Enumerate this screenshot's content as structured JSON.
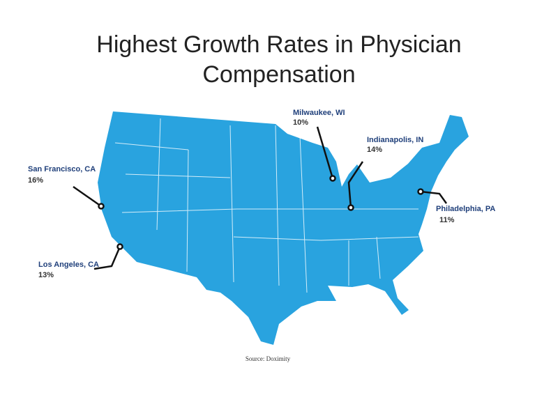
{
  "header": {
    "title_lines": [
      "Highest Growth Rates in Physician",
      "Compensation"
    ]
  },
  "cities": [
    {
      "name": "Milwaukee, WI",
      "label": "10%"
    },
    {
      "name": "Indianapolis, IN",
      "label": "14%"
    },
    {
      "name": "San Francisco, CA",
      "label": "16%"
    },
    {
      "name": "Los Angeles, CA",
      "label": "13%"
    },
    {
      "name": "Philadelphia, PA",
      "label": "11%"
    }
  ],
  "source": "Source: Doximity"
}
